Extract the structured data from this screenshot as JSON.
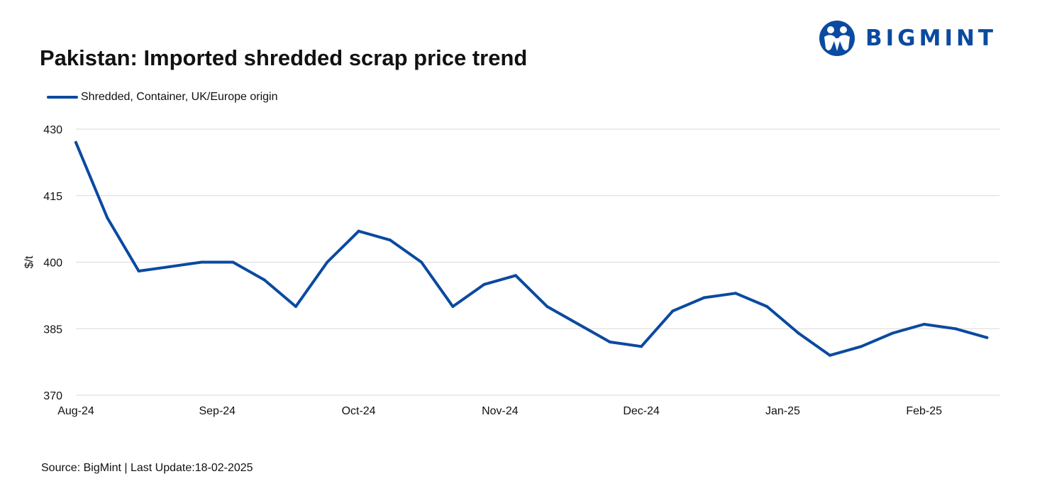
{
  "brand": {
    "name": "BIGMINT",
    "color": "#0a4aa0",
    "logo_icon": "people-globe-icon"
  },
  "source_text": "Source: BigMint | Last Update:18-02-2025",
  "chart_data": {
    "type": "line",
    "title": "Pakistan: Imported shredded scrap price trend",
    "ylabel": "$/t",
    "xlabel": "",
    "ylim": [
      370,
      430
    ],
    "yticks": [
      370,
      385,
      400,
      415,
      430
    ],
    "grid": true,
    "legend_position": "top-left",
    "x_tick_labels": [
      "Aug-24",
      "Sep-24",
      "Oct-24",
      "Nov-24",
      "Dec-24",
      "Jan-25",
      "Feb-25"
    ],
    "x_tick_positions": [
      0,
      4.5,
      9,
      13.5,
      18,
      22.5,
      27
    ],
    "x_range": [
      0,
      29.4
    ],
    "series": [
      {
        "name": "Shredded, Container, UK/Europe origin",
        "color": "#0a4aa0",
        "x": [
          0,
          1,
          2,
          3,
          4,
          5,
          6,
          7,
          8,
          9,
          10,
          11,
          12,
          13,
          14,
          15,
          16,
          17,
          18,
          19,
          20,
          21,
          22,
          23,
          24,
          25,
          26,
          27,
          28,
          29
        ],
        "values": [
          427,
          410,
          398,
          399,
          400,
          400,
          396,
          390,
          400,
          407,
          405,
          400,
          390,
          395,
          397,
          390,
          386,
          382,
          381,
          389,
          392,
          393,
          390,
          384,
          379,
          381,
          384,
          386,
          385,
          383
        ]
      }
    ]
  }
}
